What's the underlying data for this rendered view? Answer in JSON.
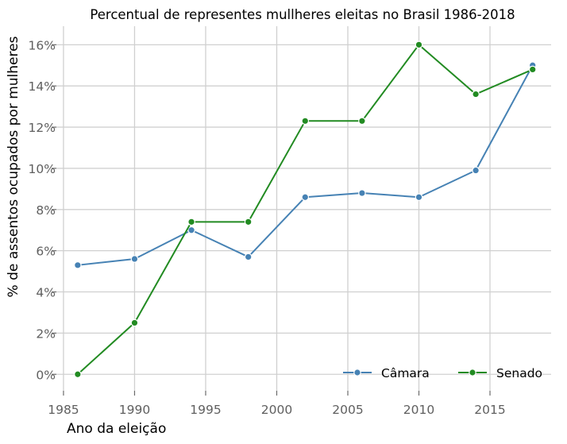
{
  "chart_data": {
    "type": "line",
    "title": "Percentual de representes mullheres eleitas no Brasil 1986-2018",
    "xlabel": "Ano da eleição",
    "ylabel": "% de assentos ocupados por mulheres",
    "x": [
      1986,
      1990,
      1994,
      1998,
      2002,
      2006,
      2010,
      2014,
      2018
    ],
    "xlim": [
      1984.5,
      2019.3
    ],
    "ylim": [
      -0.8,
      16.9
    ],
    "xticks": [
      1985,
      1990,
      1995,
      2000,
      2005,
      2010,
      2015
    ],
    "xtick_labels": [
      "1985",
      "1990",
      "1995",
      "2000",
      "2005",
      "2010",
      "2015"
    ],
    "yticks": [
      0,
      2,
      4,
      6,
      8,
      10,
      12,
      14,
      16
    ],
    "ytick_labels": [
      "0%",
      "2%",
      "4%",
      "6%",
      "8%",
      "10%",
      "12%",
      "14%",
      "16%"
    ],
    "grid": true,
    "legend_position": "bottom-right",
    "series": [
      {
        "name": "Câmara",
        "color": "#4682b4",
        "values": [
          5.3,
          5.6,
          7.0,
          5.7,
          8.6,
          8.8,
          8.6,
          9.9,
          15.0
        ]
      },
      {
        "name": "Senado",
        "color": "#228b22",
        "values": [
          0.0,
          2.5,
          7.4,
          7.4,
          12.3,
          12.3,
          16.0,
          13.6,
          14.8
        ]
      }
    ]
  }
}
